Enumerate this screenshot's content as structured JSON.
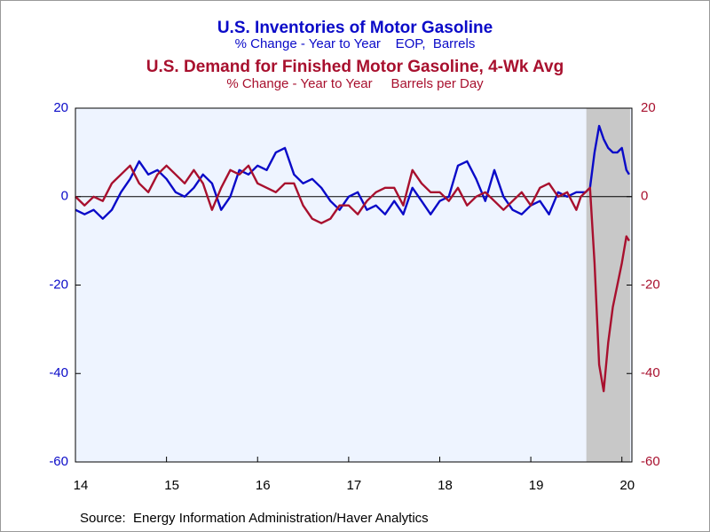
{
  "chart_data": {
    "type": "line",
    "title": "U.S. Inventories of Motor Gasoline",
    "subtitle": "% Change - Year to Year    EOP,  Barrels",
    "title2": "U.S. Demand for Finished Motor Gasoline, 4-Wk Avg",
    "subtitle2": "% Change - Year to Year     Barrels per Day",
    "source": "Source:  Energy Information Administration/Haver Analytics",
    "x": [
      2014.5,
      2014.6,
      2014.7,
      2014.8,
      2014.9,
      2015.0,
      2015.1,
      2015.2,
      2015.3,
      2015.4,
      2015.5,
      2015.6,
      2015.7,
      2015.8,
      2015.9,
      2016.0,
      2016.1,
      2016.2,
      2016.3,
      2016.4,
      2016.5,
      2016.6,
      2016.7,
      2016.8,
      2016.9,
      2017.0,
      2017.1,
      2017.2,
      2017.3,
      2017.4,
      2017.5,
      2017.6,
      2017.7,
      2017.8,
      2017.9,
      2018.0,
      2018.1,
      2018.2,
      2018.3,
      2018.4,
      2018.5,
      2018.6,
      2018.7,
      2018.8,
      2018.9,
      2019.0,
      2019.1,
      2019.2,
      2019.3,
      2019.4,
      2019.5,
      2019.6,
      2019.7,
      2019.8,
      2019.9,
      2020.0,
      2020.05,
      2020.1,
      2020.15,
      2020.2,
      2020.25,
      2020.3,
      2020.35,
      2020.4,
      2020.45,
      2020.5,
      2020.55,
      2020.58
    ],
    "series": [
      {
        "name": "U.S. Inventories of Motor Gasoline",
        "color": "#0a0ac8",
        "axis": "y",
        "values": [
          -3,
          -4,
          -3,
          -5,
          -3,
          1,
          4,
          8,
          5,
          6,
          4,
          1,
          0,
          2,
          5,
          3,
          -3,
          0,
          6,
          5,
          7,
          6,
          10,
          11,
          5,
          3,
          4,
          2,
          -1,
          -3,
          0,
          1,
          -3,
          -2,
          -4,
          -1,
          -4,
          2,
          -1,
          -4,
          -1,
          0,
          7,
          8,
          4,
          -1,
          6,
          0,
          -3,
          -4,
          -2,
          -1,
          -4,
          1,
          0,
          1,
          1,
          1,
          2,
          10,
          16,
          13,
          11,
          10,
          10,
          11,
          6,
          5
        ]
      },
      {
        "name": "U.S. Demand for Finished Motor Gasoline, 4-Wk Avg",
        "color": "#a8102e",
        "axis": "y2",
        "values": [
          0,
          -2,
          0,
          -1,
          3,
          5,
          7,
          3,
          1,
          5,
          7,
          5,
          3,
          6,
          3,
          -3,
          2,
          6,
          5,
          7,
          3,
          2,
          1,
          3,
          3,
          -2,
          -5,
          -6,
          -5,
          -2,
          -2,
          -4,
          -1,
          1,
          2,
          2,
          -2,
          6,
          3,
          1,
          1,
          -1,
          2,
          -2,
          0,
          1,
          -1,
          -3,
          -1,
          1,
          -2,
          2,
          3,
          0,
          1,
          -3,
          0,
          1,
          2,
          -15,
          -38,
          -44,
          -33,
          -25,
          -20,
          -15,
          -9,
          -10
        ]
      }
    ],
    "xlim": [
      2014.5,
      2020.61
    ],
    "xticks": [
      {
        "value": 2014.5,
        "label": "14"
      },
      {
        "value": 2015.5,
        "label": "15"
      },
      {
        "value": 2016.5,
        "label": "16"
      },
      {
        "value": 2017.5,
        "label": "17"
      },
      {
        "value": 2018.5,
        "label": "18"
      },
      {
        "value": 2019.5,
        "label": "19"
      },
      {
        "value": 2020.5,
        "label": "20"
      }
    ],
    "ylim": [
      -60,
      20
    ],
    "yticks": [
      -60,
      -40,
      -20,
      0,
      20
    ],
    "y2lim": [
      -60,
      20
    ],
    "y2ticks": [
      -60,
      -40,
      -20,
      0,
      20
    ],
    "shaded_region": [
      2020.11,
      2020.59
    ],
    "plot_background": "#eef4ff",
    "shade_color": "#c8c8c8"
  }
}
